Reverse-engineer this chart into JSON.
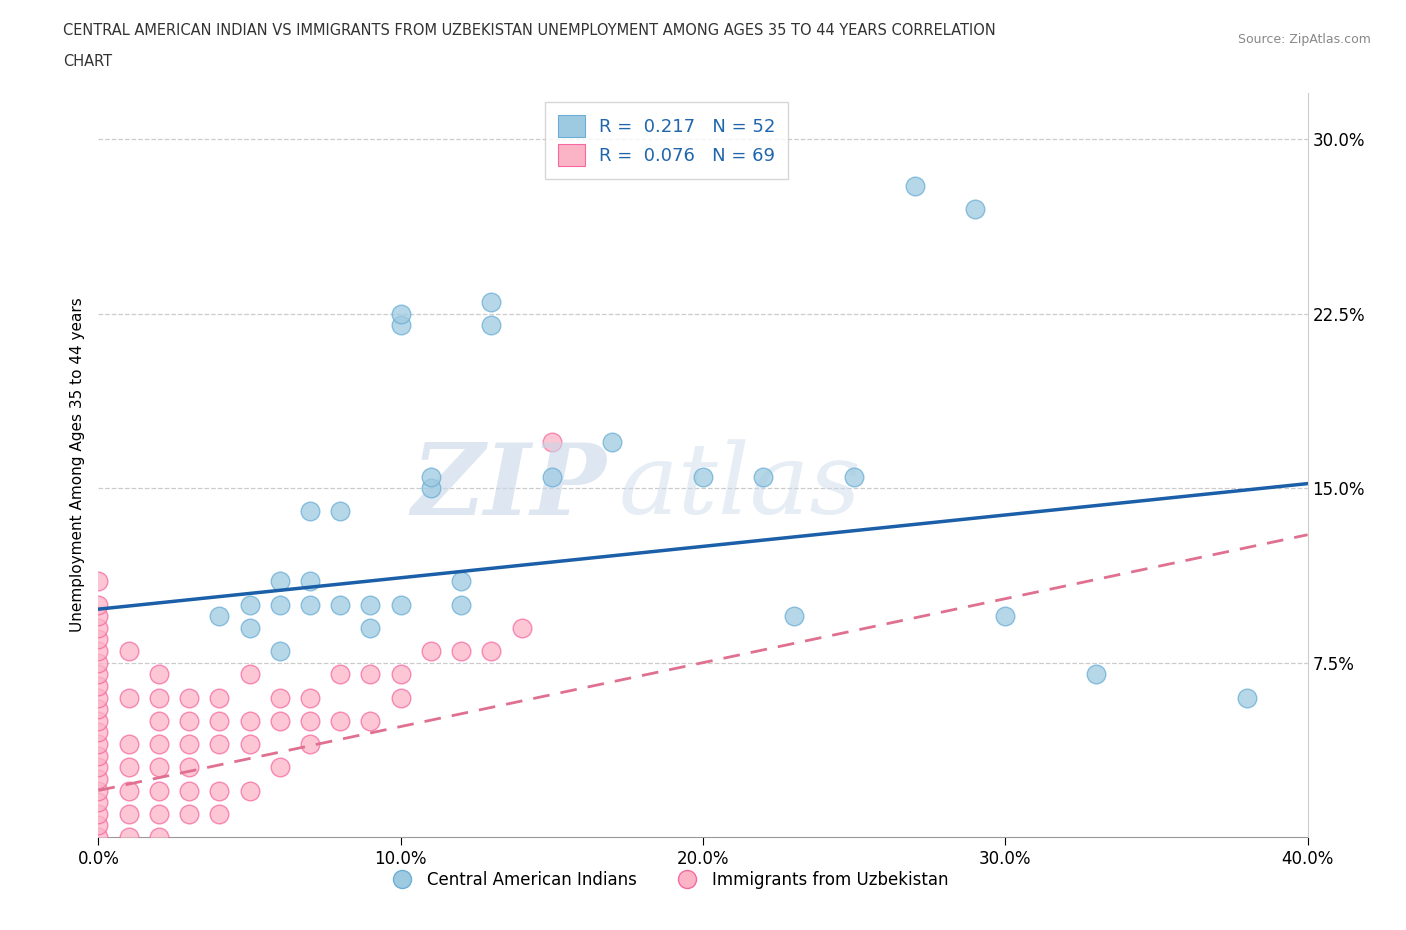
{
  "title_line1": "CENTRAL AMERICAN INDIAN VS IMMIGRANTS FROM UZBEKISTAN UNEMPLOYMENT AMONG AGES 35 TO 44 YEARS CORRELATION",
  "title_line2": "CHART",
  "source_text": "Source: ZipAtlas.com",
  "ylabel": "Unemployment Among Ages 35 to 44 years",
  "xlim": [
    0.0,
    0.4
  ],
  "ylim": [
    0.0,
    0.32
  ],
  "xticks": [
    0.0,
    0.1,
    0.2,
    0.3,
    0.4
  ],
  "xticklabels": [
    "0.0%",
    "10.0%",
    "20.0%",
    "30.0%",
    "40.0%"
  ],
  "yticks_right": [
    0.075,
    0.15,
    0.225,
    0.3
  ],
  "yticks_right_labels": [
    "7.5%",
    "15.0%",
    "22.5%",
    "30.0%"
  ],
  "blue_color": "#9ecae1",
  "blue_edge_color": "#6baed6",
  "blue_line_color": "#1a5fa8",
  "pink_color": "#fbb4c6",
  "pink_edge_color": "#f768a1",
  "pink_line_color": "#e07090",
  "legend_R1": "0.217",
  "legend_N1": "52",
  "legend_R2": "0.076",
  "legend_N2": "69",
  "blue_scatter_x": [
    0.04,
    0.05,
    0.05,
    0.06,
    0.06,
    0.06,
    0.07,
    0.07,
    0.07,
    0.08,
    0.08,
    0.09,
    0.09,
    0.1,
    0.1,
    0.1,
    0.11,
    0.11,
    0.12,
    0.12,
    0.13,
    0.13,
    0.15,
    0.17,
    0.2,
    0.22,
    0.23,
    0.25,
    0.27,
    0.29,
    0.3,
    0.33,
    0.38
  ],
  "blue_scatter_y": [
    0.095,
    0.09,
    0.1,
    0.08,
    0.1,
    0.11,
    0.1,
    0.11,
    0.14,
    0.14,
    0.1,
    0.09,
    0.1,
    0.22,
    0.225,
    0.1,
    0.15,
    0.155,
    0.1,
    0.11,
    0.22,
    0.23,
    0.155,
    0.17,
    0.155,
    0.155,
    0.095,
    0.155,
    0.28,
    0.27,
    0.095,
    0.07,
    0.06
  ],
  "pink_scatter_x": [
    0.0,
    0.0,
    0.0,
    0.0,
    0.0,
    0.0,
    0.0,
    0.0,
    0.0,
    0.0,
    0.0,
    0.0,
    0.0,
    0.0,
    0.0,
    0.0,
    0.0,
    0.0,
    0.0,
    0.0,
    0.0,
    0.0,
    0.01,
    0.01,
    0.01,
    0.01,
    0.01,
    0.01,
    0.01,
    0.02,
    0.02,
    0.02,
    0.02,
    0.02,
    0.02,
    0.02,
    0.02,
    0.03,
    0.03,
    0.03,
    0.03,
    0.03,
    0.03,
    0.04,
    0.04,
    0.04,
    0.04,
    0.04,
    0.05,
    0.05,
    0.05,
    0.05,
    0.06,
    0.06,
    0.06,
    0.07,
    0.07,
    0.07,
    0.08,
    0.08,
    0.09,
    0.09,
    0.1,
    0.1,
    0.11,
    0.12,
    0.13,
    0.14,
    0.15
  ],
  "pink_scatter_y": [
    0.0,
    0.005,
    0.01,
    0.015,
    0.02,
    0.025,
    0.03,
    0.035,
    0.04,
    0.045,
    0.05,
    0.055,
    0.06,
    0.065,
    0.07,
    0.075,
    0.08,
    0.085,
    0.09,
    0.095,
    0.1,
    0.11,
    0.0,
    0.01,
    0.02,
    0.03,
    0.04,
    0.06,
    0.08,
    0.0,
    0.01,
    0.02,
    0.03,
    0.04,
    0.05,
    0.06,
    0.07,
    0.01,
    0.02,
    0.03,
    0.04,
    0.05,
    0.06,
    0.01,
    0.02,
    0.04,
    0.05,
    0.06,
    0.02,
    0.04,
    0.05,
    0.07,
    0.03,
    0.05,
    0.06,
    0.04,
    0.05,
    0.06,
    0.05,
    0.07,
    0.05,
    0.07,
    0.06,
    0.07,
    0.08,
    0.08,
    0.08,
    0.09,
    0.17
  ],
  "blue_line_x0": 0.0,
  "blue_line_y0": 0.098,
  "blue_line_x1": 0.4,
  "blue_line_y1": 0.152,
  "pink_line_x0": 0.0,
  "pink_line_y0": 0.02,
  "pink_line_x1": 0.4,
  "pink_line_y1": 0.13
}
